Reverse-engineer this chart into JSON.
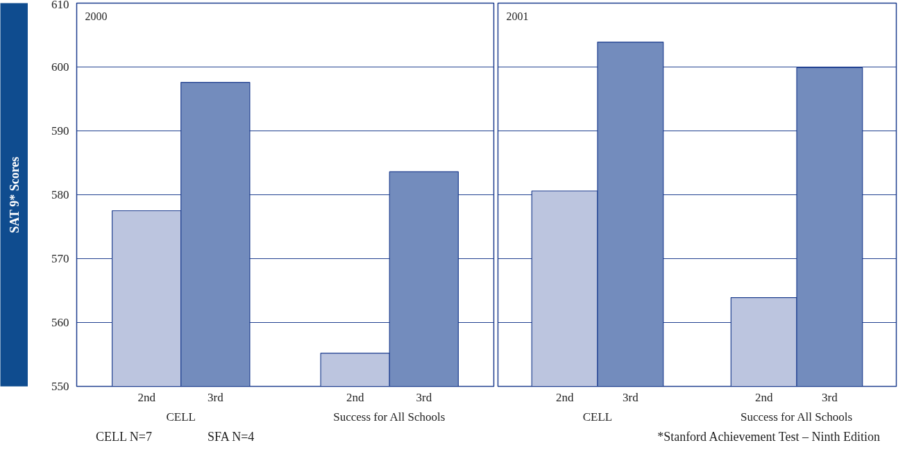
{
  "chart_data": [
    {
      "type": "bar",
      "title": "2000",
      "categories": [
        "CELL",
        "Success for All Schools"
      ],
      "series": [
        {
          "name": "2nd",
          "color": "#bcc5df",
          "values": [
            577.5,
            555.2
          ]
        },
        {
          "name": "3rd",
          "color": "#738cbd",
          "values": [
            597.6,
            583.6
          ]
        }
      ],
      "ylabel": "SAT 9* Scores",
      "ylim": [
        550,
        610
      ],
      "yticks": [
        550,
        560,
        570,
        580,
        590,
        600,
        610
      ],
      "grid": "y",
      "annotations": [
        "CELL N=7",
        "SFA N=4"
      ]
    },
    {
      "type": "bar",
      "title": "2001",
      "categories": [
        "CELL",
        "Success for All Schools"
      ],
      "series": [
        {
          "name": "2nd",
          "color": "#bcc5df",
          "values": [
            580.6,
            563.9
          ]
        },
        {
          "name": "3rd",
          "color": "#738cbd",
          "values": [
            603.9,
            599.9
          ]
        }
      ],
      "ylim": [
        550,
        610
      ],
      "yticks": [
        550,
        560,
        570,
        580,
        590,
        600,
        610
      ],
      "grid": "y",
      "tick_labels": "x",
      "annotations": [
        "*Stanford Achievement Test – Ninth Edition"
      ]
    }
  ]
}
